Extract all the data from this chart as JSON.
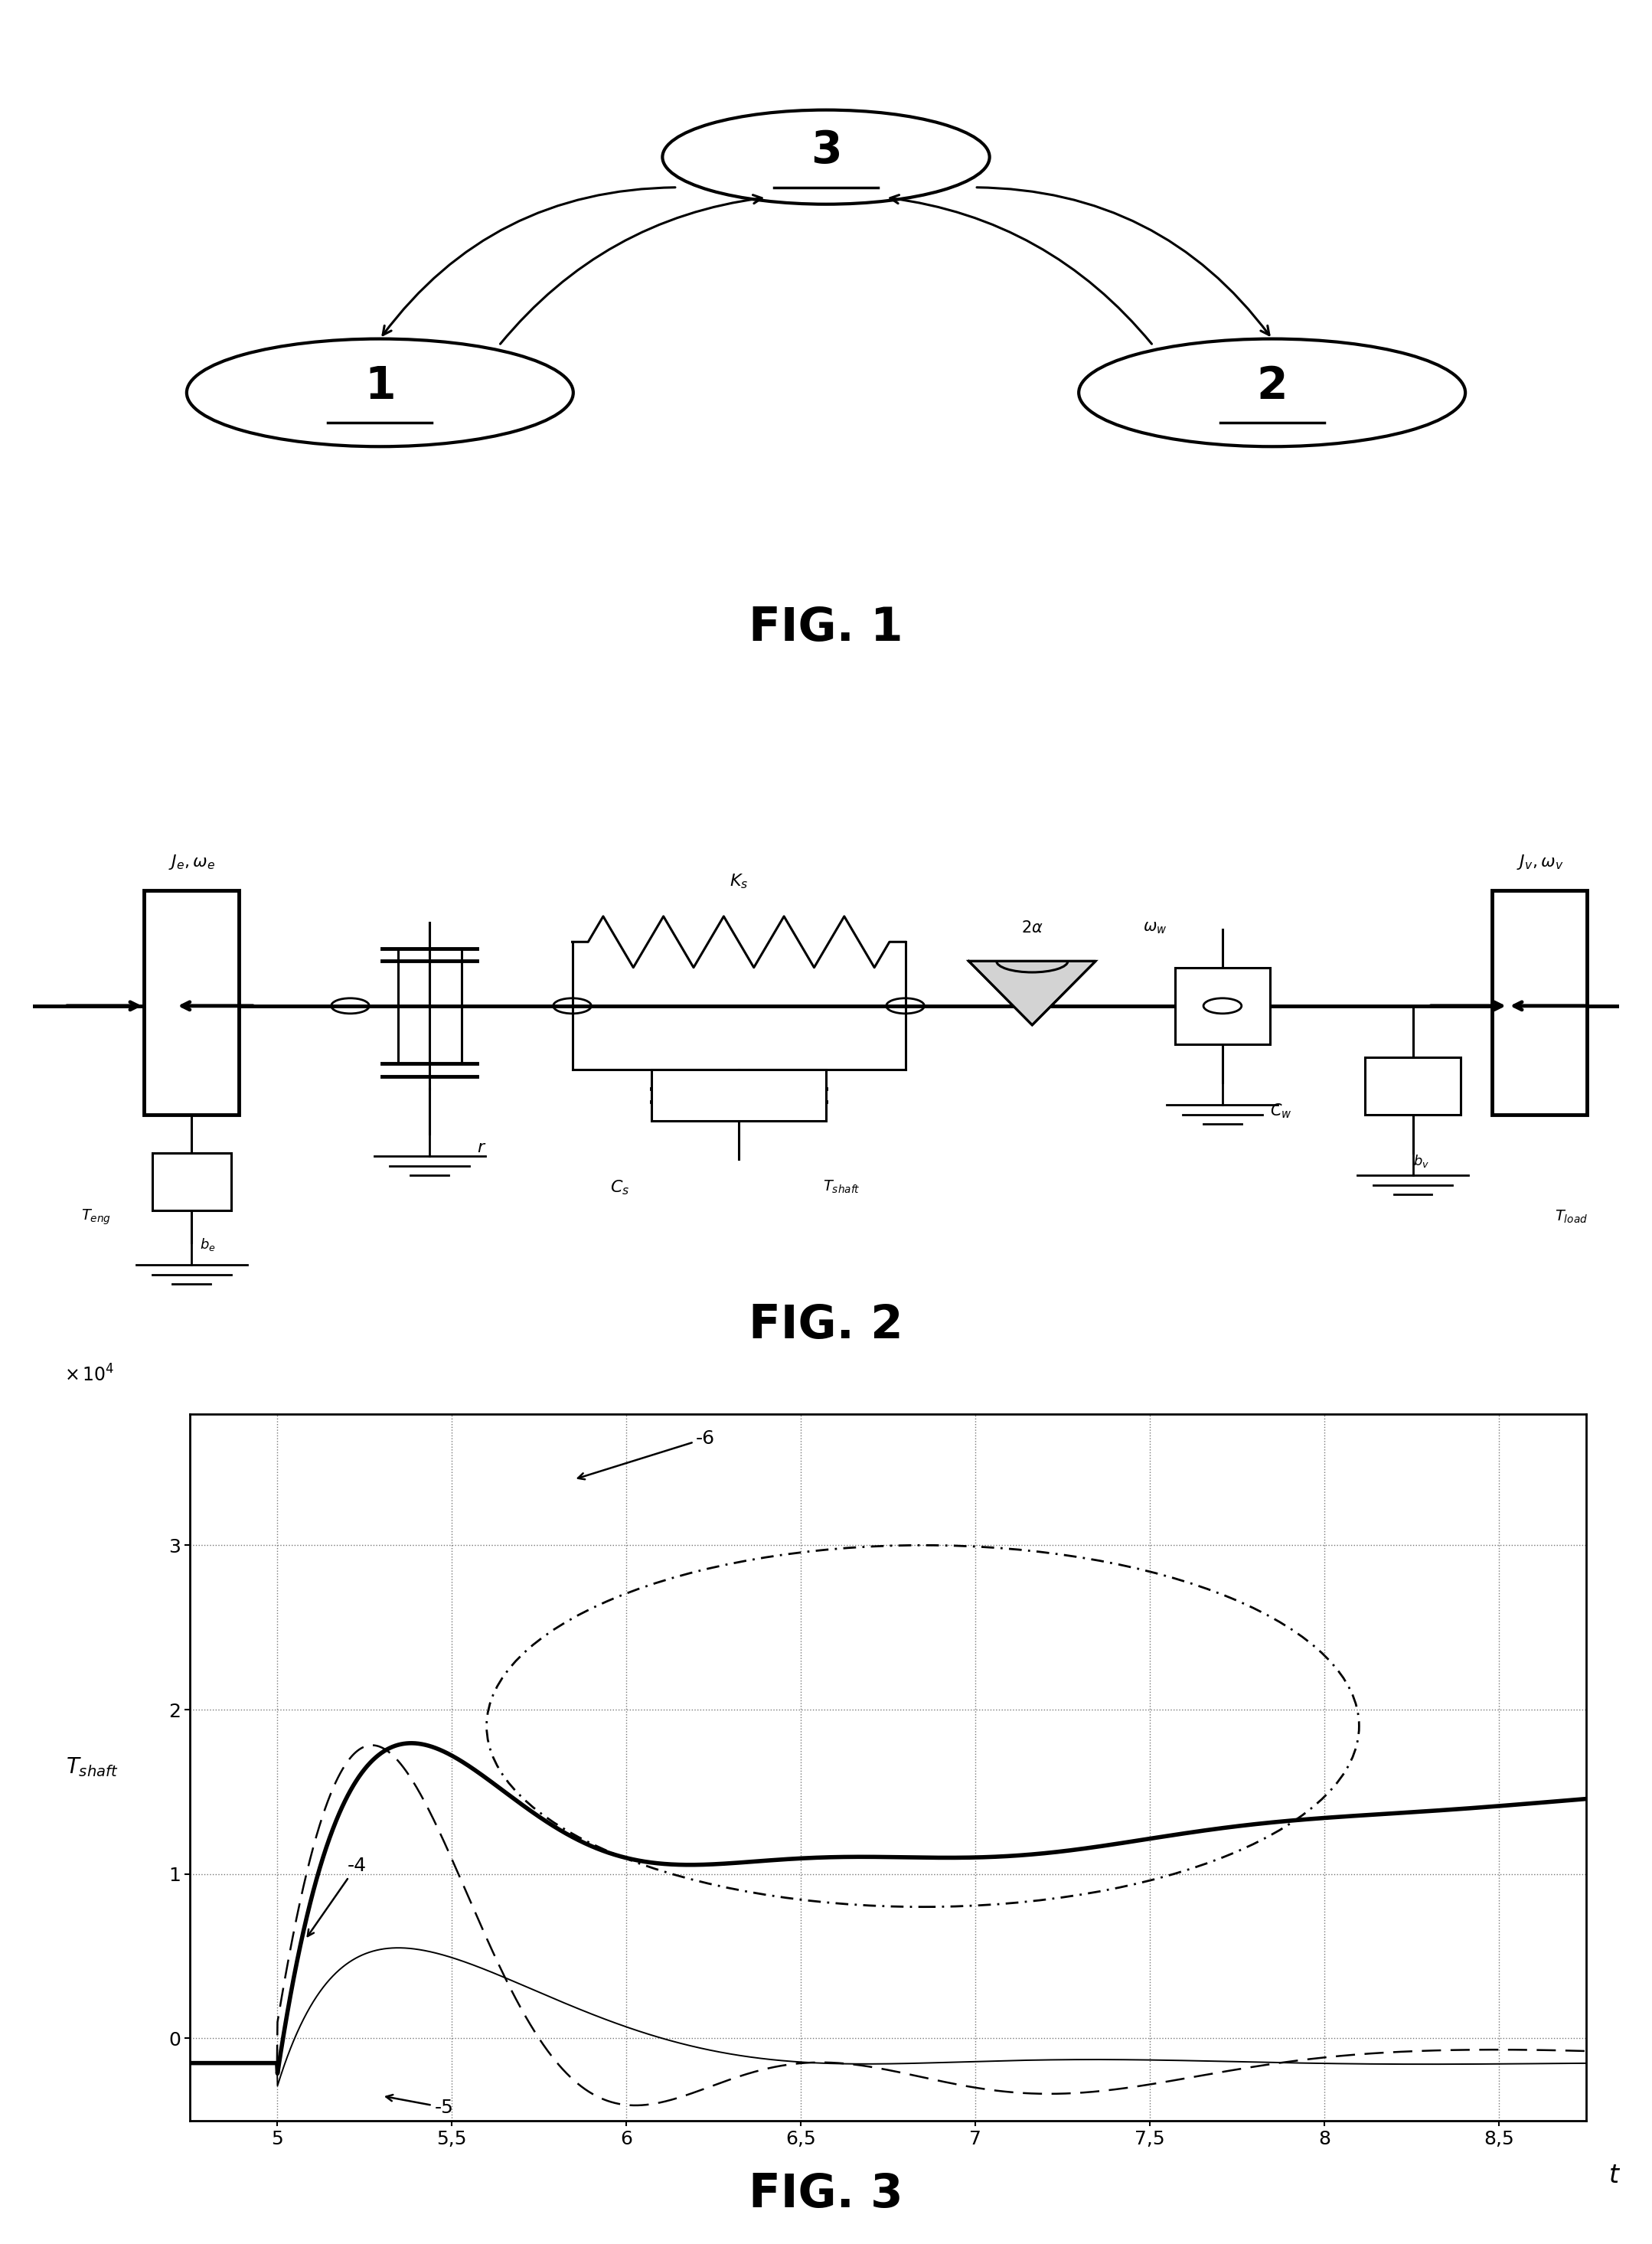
{
  "fig_width": 21.58,
  "fig_height": 29.31,
  "bg_color": "#ffffff",
  "fig1_title": "FIG. 1",
  "fig2_title": "FIG. 2",
  "fig3_title": "FIG. 3",
  "fig3_xlim": [
    4.75,
    8.75
  ],
  "fig3_ylim": [
    -5000,
    38000
  ],
  "fig3_xticks": [
    5,
    5.5,
    6,
    6.5,
    7,
    7.5,
    8,
    8.5
  ],
  "fig3_yticks": [
    0,
    10000,
    20000,
    30000
  ],
  "fig3_ytick_labels": [
    "0",
    "1",
    "2",
    "3"
  ],
  "fig3_xtick_labels": [
    "5",
    "5,5",
    "6",
    "6,5",
    "7",
    "7,5",
    "8",
    "8,5"
  ]
}
